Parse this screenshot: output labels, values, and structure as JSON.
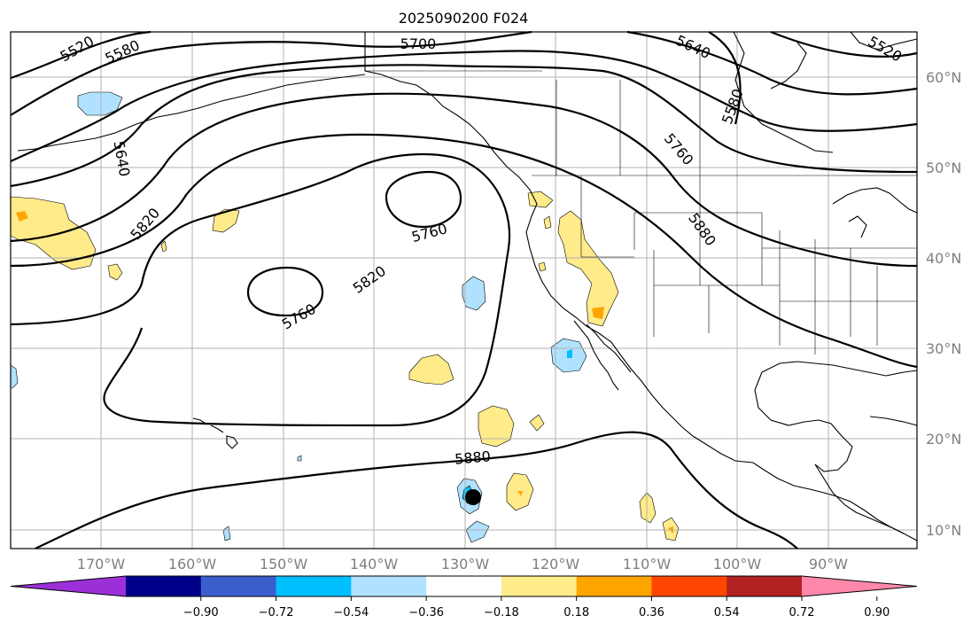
{
  "title": "2025090200 F024",
  "latitude_labels": [
    "60°N",
    "50°N",
    "40°N",
    "30°N",
    "20°N",
    "10°N"
  ],
  "longitude_labels": [
    "170°W",
    "160°W",
    "150°W",
    "140°W",
    "130°W",
    "120°W",
    "110°W",
    "100°W",
    "90°W"
  ],
  "contour_labels": [
    "5520",
    "5580",
    "5640",
    "5700",
    "5640",
    "5580",
    "5520",
    "5760",
    "5820",
    "5760",
    "5820",
    "5760",
    "5880",
    "5880"
  ],
  "colorbar": {
    "colors": [
      "#9b30d9",
      "#00008b",
      "#3a5fcd",
      "#00bfff",
      "#b0e2ff",
      "#ffffff",
      "#ffeb8a",
      "#ffa500",
      "#ff4500",
      "#b22222",
      "#ff88aa"
    ],
    "tick_labels": [
      "−0.90",
      "−0.72",
      "−0.54",
      "−0.36",
      "−0.18",
      "0.18",
      "0.36",
      "0.54",
      "0.72",
      "0.90"
    ]
  },
  "colors": {
    "land_outline": "#000000",
    "grid": "#b0b0b0",
    "contour": "#000000",
    "storm_marker": "#000000"
  }
}
